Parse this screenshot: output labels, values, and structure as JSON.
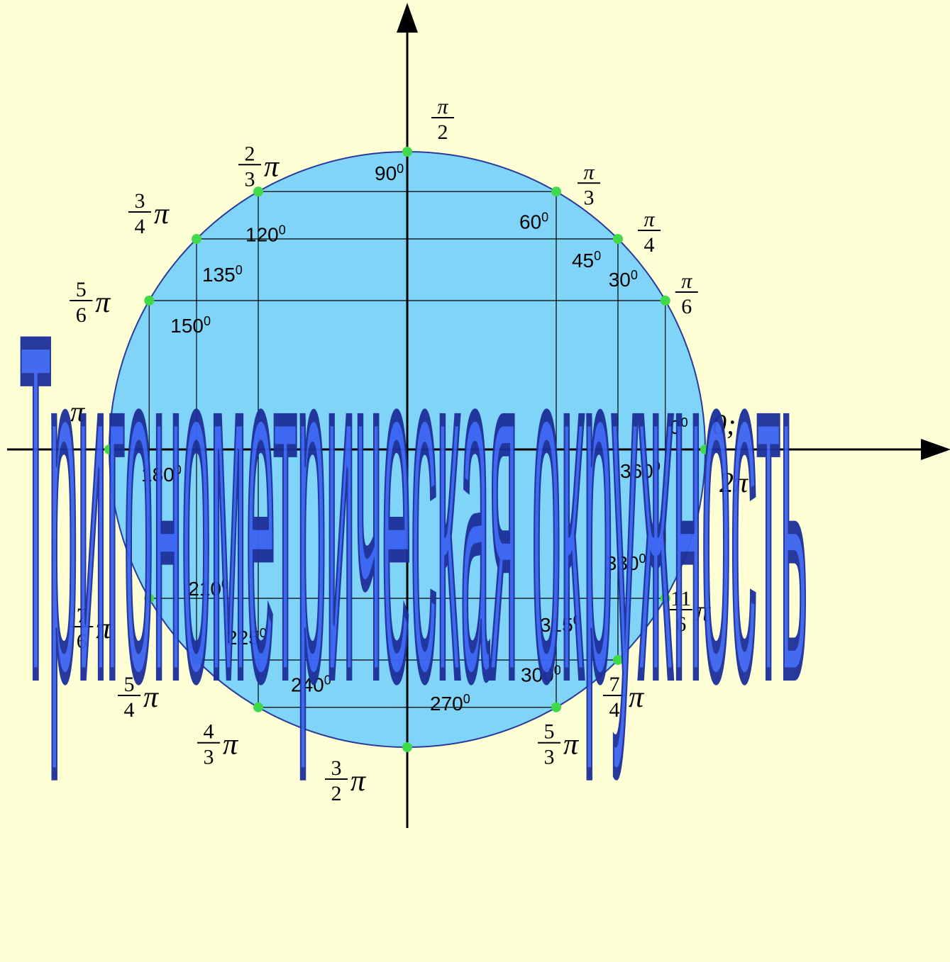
{
  "diagram": {
    "colors": {
      "background": "#ffffd6",
      "circle_fill": "#7fd4f8",
      "circle_stroke": "#2b3a9a",
      "point": "#3fd94a",
      "overlay_fill": "#3b63f2",
      "overlay_stroke": "#1d2f9a",
      "axis": "#000000"
    },
    "points": [
      {
        "angle": 0,
        "degree_sup": "0",
        "degree_num": "0",
        "radian_text": "0;"
      },
      {
        "angle": 30,
        "degree_sup": "0",
        "degree_num": "30",
        "frac_num": "π",
        "frac_den": "6",
        "frac_tail": ""
      },
      {
        "angle": 45,
        "degree_sup": "0",
        "degree_num": "45",
        "frac_num": "π",
        "frac_den": "4",
        "frac_tail": ""
      },
      {
        "angle": 60,
        "degree_sup": "0",
        "degree_num": "60",
        "frac_num": "π",
        "frac_den": "3",
        "frac_tail": ""
      },
      {
        "angle": 90,
        "degree_sup": "0",
        "degree_num": "90",
        "frac_num": "π",
        "frac_den": "2",
        "frac_tail": ""
      },
      {
        "angle": 120,
        "degree_sup": "0",
        "degree_num": "120",
        "frac_num": "2",
        "frac_den": "3",
        "frac_tail": "π"
      },
      {
        "angle": 135,
        "degree_sup": "0",
        "degree_num": "135",
        "frac_num": "3",
        "frac_den": "4",
        "frac_tail": "π"
      },
      {
        "angle": 150,
        "degree_sup": "0",
        "degree_num": "150",
        "frac_num": "5",
        "frac_den": "6",
        "frac_tail": "π"
      },
      {
        "angle": 180,
        "degree_sup": "0",
        "degree_num": "180",
        "radian_text": "π"
      },
      {
        "angle": 210,
        "degree_sup": "0",
        "degree_num": "210",
        "frac_num": "7",
        "frac_den": "6",
        "frac_tail": "π"
      },
      {
        "angle": 225,
        "degree_sup": "0",
        "degree_num": "225",
        "frac_num": "5",
        "frac_den": "4",
        "frac_tail": "π"
      },
      {
        "angle": 240,
        "degree_sup": "0",
        "degree_num": "240",
        "frac_num": "4",
        "frac_den": "3",
        "frac_tail": "π"
      },
      {
        "angle": 270,
        "degree_sup": "0",
        "degree_num": "270",
        "frac_num": "3",
        "frac_den": "2",
        "frac_tail": "π"
      },
      {
        "angle": 300,
        "degree_sup": "0",
        "degree_num": "300",
        "frac_num": "5",
        "frac_den": "3",
        "frac_tail": "π"
      },
      {
        "angle": 315,
        "degree_sup": "0",
        "degree_num": "315",
        "frac_num": "7",
        "frac_den": "4",
        "frac_tail": "π"
      },
      {
        "angle": 330,
        "degree_sup": "0",
        "degree_num": "330",
        "frac_num": "11",
        "frac_den": "6",
        "frac_tail": "π"
      },
      {
        "angle": 360,
        "degree_sup": "0",
        "degree_num": "360",
        "radian_text": "2π"
      }
    ],
    "overlay_title": "Тригонометрическая окружность"
  }
}
